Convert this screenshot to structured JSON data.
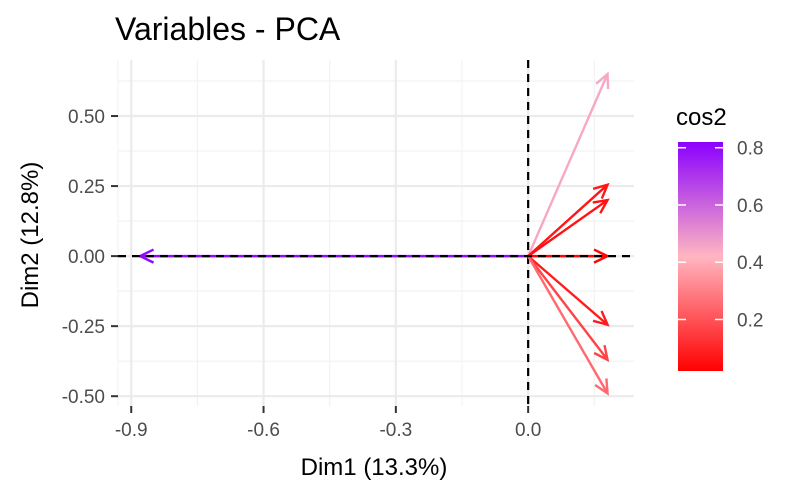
{
  "chart_data": {
    "type": "vector-plot",
    "title": "Variables - PCA",
    "xlabel": "Dim1 (13.3%)",
    "ylabel": "Dim2 (12.8%)",
    "xlim": [
      -0.93,
      0.24
    ],
    "ylim": [
      -0.535,
      0.7
    ],
    "x_ticks": [
      -0.9,
      -0.6,
      -0.3,
      0.0
    ],
    "x_tick_labels": [
      "-0.9",
      "-0.6",
      "-0.3",
      "0.0"
    ],
    "y_ticks": [
      -0.5,
      -0.25,
      0.0,
      0.25,
      0.5
    ],
    "y_tick_labels": [
      "-0.50",
      "-0.25",
      "0.00",
      "0.25",
      "0.50"
    ],
    "grid": true,
    "reference_lines": {
      "x": 0,
      "y": 0,
      "style": "dashed"
    },
    "vectors": [
      {
        "x": -0.88,
        "y": 0.0,
        "cos2": 0.8
      },
      {
        "x": 0.18,
        "y": 0.65,
        "cos2": 0.45
      },
      {
        "x": 0.18,
        "y": 0.255,
        "cos2": 0.07
      },
      {
        "x": 0.18,
        "y": 0.2,
        "cos2": 0.06
      },
      {
        "x": 0.18,
        "y": 0.0,
        "cos2": 0.03
      },
      {
        "x": 0.18,
        "y": -0.245,
        "cos2": 0.08
      },
      {
        "x": 0.18,
        "y": -0.37,
        "cos2": 0.17
      },
      {
        "x": 0.18,
        "y": -0.49,
        "cos2": 0.25
      }
    ],
    "legend": {
      "title": "cos2",
      "placement": "right",
      "range": [
        0.02,
        0.82
      ],
      "ticks": [
        0.2,
        0.4,
        0.6,
        0.8
      ],
      "tick_labels": [
        "0.2",
        "0.4",
        "0.6",
        "0.8"
      ],
      "colors": {
        "low": "#ff0000",
        "mid": "#ffb6c1",
        "high": "#8b00ff"
      }
    }
  }
}
